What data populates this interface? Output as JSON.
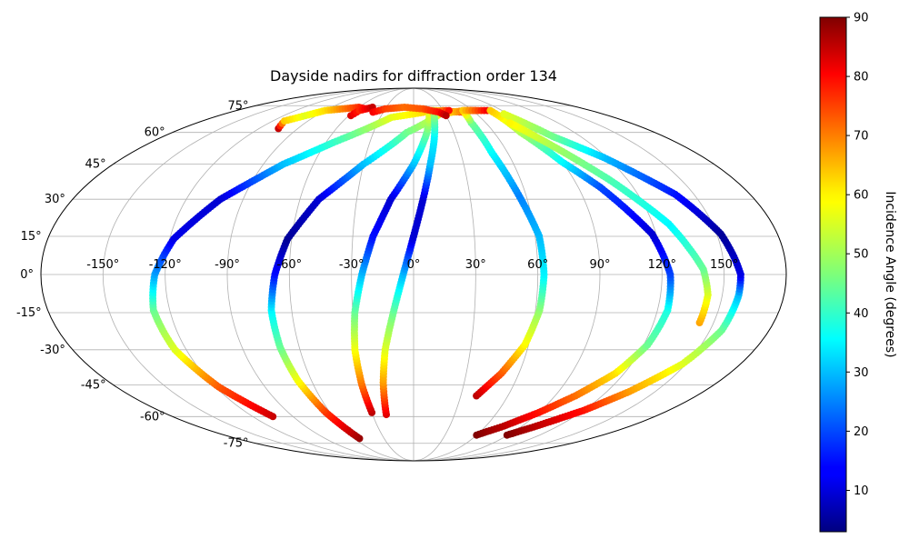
{
  "chart_data": {
    "type": "scatter",
    "projection": "mollweide",
    "title": "Dayside nadirs for diffraction order 134",
    "xlabel": "",
    "ylabel": "",
    "x_ticks": [
      "-150°",
      "-120°",
      "-90°",
      "-60°",
      "-30°",
      "0°",
      "30°",
      "60°",
      "90°",
      "120°",
      "150°"
    ],
    "x_tick_values": [
      -150,
      -120,
      -90,
      -60,
      -30,
      0,
      30,
      60,
      90,
      120,
      150
    ],
    "y_ticks": [
      "75°",
      "60°",
      "45°",
      "30°",
      "15°",
      "0°",
      "-15°",
      "-30°",
      "-45°",
      "-60°",
      "-75°"
    ],
    "y_tick_values": [
      75,
      60,
      45,
      30,
      15,
      0,
      -15,
      -30,
      -45,
      -60,
      -75
    ],
    "grid": true,
    "xlim": [
      -180,
      180
    ],
    "ylim": [
      -90,
      90
    ],
    "colorbar": {
      "label": "Incidence Angle (degrees)",
      "colormap": "jet",
      "range": [
        3,
        90
      ],
      "ticks": [
        "10",
        "20",
        "30",
        "40",
        "50",
        "60",
        "70",
        "80",
        "90"
      ],
      "tick_values": [
        10,
        20,
        30,
        40,
        50,
        60,
        70,
        80,
        90
      ]
    },
    "series": [
      {
        "points": [
          [
            -105,
            -60,
            84
          ],
          [
            -118,
            -46,
            72
          ],
          [
            -126,
            -30,
            55
          ],
          [
            -128,
            -14,
            45
          ],
          [
            -125,
            0,
            28
          ],
          [
            -118,
            14,
            12
          ],
          [
            -102,
            30,
            10
          ],
          [
            -78,
            45,
            30
          ],
          [
            -55,
            55,
            40
          ],
          [
            -20,
            68,
            55
          ],
          [
            20,
            72,
            62
          ],
          [
            48,
            71,
            75
          ],
          [
            58,
            72,
            80
          ]
        ]
      },
      {
        "points": [
          [
            -55,
            -72,
            88
          ],
          [
            -63,
            -58,
            75
          ],
          [
            -68,
            -43,
            57
          ],
          [
            -70,
            -29,
            45
          ],
          [
            -70,
            -14,
            35
          ],
          [
            -67,
            0,
            15
          ],
          [
            -62,
            14,
            5
          ],
          [
            -50,
            30,
            10
          ],
          [
            -30,
            45,
            30
          ],
          [
            -5,
            60,
            45
          ],
          [
            25,
            70,
            55
          ],
          [
            52,
            72,
            70
          ],
          [
            63,
            72,
            80
          ]
        ]
      },
      {
        "points": [
          [
            -30,
            -58,
            85
          ],
          [
            -31,
            -45,
            70
          ],
          [
            -31,
            -30,
            57
          ],
          [
            -29,
            -15,
            45
          ],
          [
            -25,
            0,
            30
          ],
          [
            -20,
            15,
            15
          ],
          [
            -12,
            30,
            10
          ],
          [
            0,
            45,
            30
          ],
          [
            10,
            60,
            45
          ],
          [
            15,
            70,
            55
          ],
          [
            30,
            72,
            70
          ],
          [
            36,
            72,
            78
          ]
        ]
      },
      {
        "points": [
          [
            -20,
            -59,
            82
          ],
          [
            -18,
            -44,
            66
          ],
          [
            -15,
            -30,
            55
          ],
          [
            -10,
            -15,
            45
          ],
          [
            -5,
            0,
            30
          ],
          [
            0,
            15,
            10
          ],
          [
            5,
            30,
            10
          ],
          [
            10,
            45,
            30
          ],
          [
            15,
            58,
            35
          ],
          [
            20,
            72,
            50
          ]
        ]
      },
      {
        "points": [
          [
            40,
            -50,
            85
          ],
          [
            50,
            -40,
            72
          ],
          [
            58,
            -28,
            58
          ],
          [
            62,
            -14,
            48
          ],
          [
            63,
            0,
            35
          ],
          [
            62,
            15,
            30
          ],
          [
            56,
            32,
            25
          ],
          [
            50,
            50,
            35
          ],
          [
            48,
            65,
            45
          ],
          [
            50,
            72,
            62
          ],
          [
            75,
            72,
            80
          ]
        ]
      },
      {
        "points": [
          [
            -105,
            62,
            84
          ],
          [
            -110,
            66,
            62
          ],
          [
            -100,
            69,
            55
          ],
          [
            -90,
            72,
            60
          ],
          [
            -75,
            73,
            68
          ],
          [
            -60,
            74,
            75
          ],
          [
            -50,
            73,
            80
          ]
        ]
      },
      {
        "points": [
          [
            -58,
            69,
            82
          ],
          [
            -55,
            72,
            76
          ],
          [
            -45,
            74,
            84
          ]
        ]
      },
      {
        "points": [
          [
            -40,
            71,
            80
          ],
          [
            -30,
            73,
            74
          ],
          [
            -10,
            74,
            70
          ],
          [
            10,
            73,
            72
          ],
          [
            25,
            71,
            78
          ],
          [
            30,
            69,
            85
          ]
        ]
      },
      {
        "points": [
          [
            60,
            -70,
            90
          ],
          [
            75,
            -65,
            85
          ],
          [
            90,
            -58,
            78
          ],
          [
            103,
            -50,
            70
          ],
          [
            115,
            -40,
            60
          ],
          [
            122,
            -28,
            45
          ],
          [
            125,
            -14,
            38
          ],
          [
            124,
            0,
            20
          ],
          [
            118,
            16,
            10
          ],
          [
            102,
            35,
            20
          ],
          [
            90,
            46,
            35
          ],
          [
            80,
            60,
            50
          ],
          [
            78,
            72,
            62
          ]
        ]
      },
      {
        "points": [
          [
            89,
            -70,
            90
          ],
          [
            102,
            -65,
            85
          ],
          [
            120,
            -57,
            78
          ],
          [
            134,
            -48,
            66
          ],
          [
            148,
            -36,
            55
          ],
          [
            156,
            -22,
            45
          ],
          [
            158,
            -8,
            30
          ],
          [
            158,
            0,
            12
          ],
          [
            152,
            16,
            5
          ],
          [
            140,
            32,
            15
          ],
          [
            118,
            48,
            30
          ],
          [
            100,
            58,
            45
          ],
          [
            86,
            70,
            55
          ]
        ]
      },
      {
        "points": [
          [
            143,
            -19,
            65
          ],
          [
            143,
            -8,
            55
          ],
          [
            140,
            2,
            45
          ],
          [
            128,
            20,
            35
          ],
          [
            110,
            38,
            42
          ],
          [
            92,
            54,
            50
          ],
          [
            80,
            65,
            58
          ]
        ]
      }
    ]
  }
}
